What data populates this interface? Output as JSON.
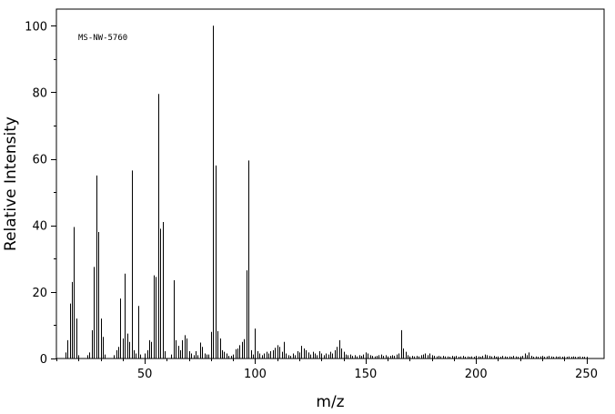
{
  "chart_data": {
    "type": "bar",
    "annotation": "MS-NW-5760",
    "xlabel": "m/z",
    "ylabel": "Relative Intensity",
    "xlim": [
      10,
      258
    ],
    "ylim": [
      0,
      105
    ],
    "xticks": [
      50,
      100,
      150,
      200,
      250
    ],
    "yticks": [
      0,
      20,
      40,
      60,
      80,
      100
    ],
    "grid": false,
    "peaks": [
      [
        14,
        1.8
      ],
      [
        15,
        5.5
      ],
      [
        16,
        16.5
      ],
      [
        17,
        23
      ],
      [
        18,
        39.5
      ],
      [
        19,
        12
      ],
      [
        20,
        1
      ],
      [
        24,
        1
      ],
      [
        25,
        1.8
      ],
      [
        26,
        8.5
      ],
      [
        27,
        27.5
      ],
      [
        28,
        55
      ],
      [
        29,
        38
      ],
      [
        30,
        12
      ],
      [
        31,
        6.5
      ],
      [
        32,
        1.2
      ],
      [
        36,
        1
      ],
      [
        37,
        2.5
      ],
      [
        38,
        3.5
      ],
      [
        39,
        18
      ],
      [
        40,
        6
      ],
      [
        41,
        25.5
      ],
      [
        42,
        7.5
      ],
      [
        43,
        5
      ],
      [
        44,
        56.5
      ],
      [
        45,
        2.5
      ],
      [
        46,
        1.5
      ],
      [
        47,
        15.8
      ],
      [
        48,
        1.2
      ],
      [
        50,
        1.5
      ],
      [
        51,
        2.5
      ],
      [
        52,
        5.5
      ],
      [
        53,
        5
      ],
      [
        54,
        25
      ],
      [
        55,
        24.5
      ],
      [
        56,
        79.5
      ],
      [
        57,
        39
      ],
      [
        58,
        41
      ],
      [
        59,
        2.2
      ],
      [
        62,
        1.2
      ],
      [
        63,
        23.5
      ],
      [
        64,
        5.5
      ],
      [
        65,
        3.8
      ],
      [
        66,
        2.5
      ],
      [
        67,
        5.5
      ],
      [
        68,
        7
      ],
      [
        69,
        6
      ],
      [
        70,
        2.2
      ],
      [
        71,
        1.5
      ],
      [
        72,
        1
      ],
      [
        73,
        2.2
      ],
      [
        74,
        1
      ],
      [
        75,
        4.8
      ],
      [
        76,
        3.5
      ],
      [
        77,
        1.5
      ],
      [
        78,
        1.2
      ],
      [
        79,
        1.2
      ],
      [
        80,
        8
      ],
      [
        81,
        100
      ],
      [
        82,
        58
      ],
      [
        83,
        8.2
      ],
      [
        84,
        6
      ],
      [
        85,
        2.5
      ],
      [
        86,
        2
      ],
      [
        87,
        1.5
      ],
      [
        88,
        0.8
      ],
      [
        89,
        0.8
      ],
      [
        90,
        1.2
      ],
      [
        91,
        2.8
      ],
      [
        92,
        3
      ],
      [
        93,
        4
      ],
      [
        94,
        5
      ],
      [
        95,
        5.8
      ],
      [
        96,
        26.5
      ],
      [
        97,
        59.5
      ],
      [
        98,
        2.5
      ],
      [
        99,
        1.2
      ],
      [
        100,
        9
      ],
      [
        101,
        2.2
      ],
      [
        102,
        1.5
      ],
      [
        103,
        1
      ],
      [
        104,
        1.5
      ],
      [
        105,
        2
      ],
      [
        106,
        1.5
      ],
      [
        107,
        2.2
      ],
      [
        108,
        2.5
      ],
      [
        109,
        3.2
      ],
      [
        110,
        4
      ],
      [
        111,
        3.5
      ],
      [
        112,
        2
      ],
      [
        113,
        5
      ],
      [
        114,
        1.5
      ],
      [
        115,
        1
      ],
      [
        116,
        0.8
      ],
      [
        117,
        1.5
      ],
      [
        118,
        1
      ],
      [
        119,
        2.2
      ],
      [
        120,
        1.8
      ],
      [
        121,
        3.8
      ],
      [
        122,
        3
      ],
      [
        123,
        2.5
      ],
      [
        124,
        1.8
      ],
      [
        125,
        1.2
      ],
      [
        126,
        2
      ],
      [
        127,
        1.5
      ],
      [
        128,
        1
      ],
      [
        129,
        2.2
      ],
      [
        130,
        1.5
      ],
      [
        131,
        1
      ],
      [
        132,
        1.5
      ],
      [
        133,
        1.2
      ],
      [
        134,
        2
      ],
      [
        135,
        1.5
      ],
      [
        136,
        2.5
      ],
      [
        137,
        3.5
      ],
      [
        138,
        5.5
      ],
      [
        139,
        3
      ],
      [
        140,
        2
      ],
      [
        141,
        1.2
      ],
      [
        142,
        1
      ],
      [
        143,
        1.2
      ],
      [
        144,
        0.8
      ],
      [
        145,
        1
      ],
      [
        146,
        0.6
      ],
      [
        147,
        1
      ],
      [
        148,
        0.8
      ],
      [
        149,
        1.2
      ],
      [
        150,
        1.8
      ],
      [
        151,
        1.5
      ],
      [
        152,
        1
      ],
      [
        153,
        0.8
      ],
      [
        154,
        0.6
      ],
      [
        155,
        0.8
      ],
      [
        156,
        1
      ],
      [
        157,
        1.2
      ],
      [
        158,
        0.8
      ],
      [
        159,
        1
      ],
      [
        160,
        0.6
      ],
      [
        161,
        0.8
      ],
      [
        162,
        1
      ],
      [
        163,
        0.8
      ],
      [
        164,
        1.2
      ],
      [
        165,
        1.5
      ],
      [
        166,
        8.5
      ],
      [
        167,
        3
      ],
      [
        168,
        2
      ],
      [
        169,
        1
      ],
      [
        170,
        0.6
      ],
      [
        171,
        0.8
      ],
      [
        172,
        0.6
      ],
      [
        173,
        0.8
      ],
      [
        174,
        0.6
      ],
      [
        175,
        1
      ],
      [
        176,
        1.2
      ],
      [
        177,
        1.5
      ],
      [
        178,
        1
      ],
      [
        179,
        1.5
      ],
      [
        180,
        1
      ],
      [
        181,
        0.8
      ],
      [
        182,
        0.6
      ],
      [
        183,
        0.8
      ],
      [
        184,
        0.6
      ],
      [
        185,
        0.8
      ],
      [
        186,
        0.6
      ],
      [
        187,
        0.6
      ],
      [
        188,
        0.5
      ],
      [
        189,
        0.8
      ],
      [
        190,
        0.6
      ],
      [
        191,
        0.8
      ],
      [
        192,
        0.5
      ],
      [
        193,
        0.6
      ],
      [
        194,
        0.8
      ],
      [
        195,
        0.5
      ],
      [
        196,
        0.6
      ],
      [
        197,
        0.5
      ],
      [
        198,
        0.6
      ],
      [
        199,
        0.5
      ],
      [
        200,
        0.8
      ],
      [
        201,
        0.6
      ],
      [
        202,
        0.5
      ],
      [
        203,
        0.8
      ],
      [
        204,
        1.2
      ],
      [
        205,
        1
      ],
      [
        206,
        0.8
      ],
      [
        207,
        0.6
      ],
      [
        208,
        0.8
      ],
      [
        209,
        0.5
      ],
      [
        210,
        0.6
      ],
      [
        211,
        0.5
      ],
      [
        212,
        0.8
      ],
      [
        213,
        0.6
      ],
      [
        214,
        0.5
      ],
      [
        215,
        0.6
      ],
      [
        216,
        0.5
      ],
      [
        217,
        0.8
      ],
      [
        218,
        0.6
      ],
      [
        219,
        0.5
      ],
      [
        220,
        0.6
      ],
      [
        221,
        0.8
      ],
      [
        222,
        1.5
      ],
      [
        223,
        1
      ],
      [
        224,
        1.8
      ],
      [
        225,
        0.8
      ],
      [
        226,
        0.5
      ],
      [
        227,
        0.6
      ],
      [
        228,
        0.5
      ],
      [
        229,
        0.6
      ],
      [
        230,
        0.8
      ],
      [
        231,
        0.5
      ],
      [
        232,
        0.6
      ],
      [
        233,
        0.8
      ],
      [
        234,
        0.6
      ],
      [
        235,
        0.5
      ],
      [
        236,
        0.6
      ],
      [
        237,
        0.5
      ],
      [
        238,
        0.6
      ],
      [
        239,
        0.5
      ],
      [
        240,
        0.6
      ],
      [
        241,
        0.5
      ],
      [
        242,
        0.6
      ],
      [
        243,
        0.5
      ],
      [
        244,
        0.6
      ],
      [
        245,
        0.5
      ],
      [
        246,
        0.5
      ],
      [
        247,
        0.6
      ],
      [
        248,
        0.5
      ],
      [
        249,
        0.5
      ],
      [
        250,
        0.5
      ]
    ]
  }
}
